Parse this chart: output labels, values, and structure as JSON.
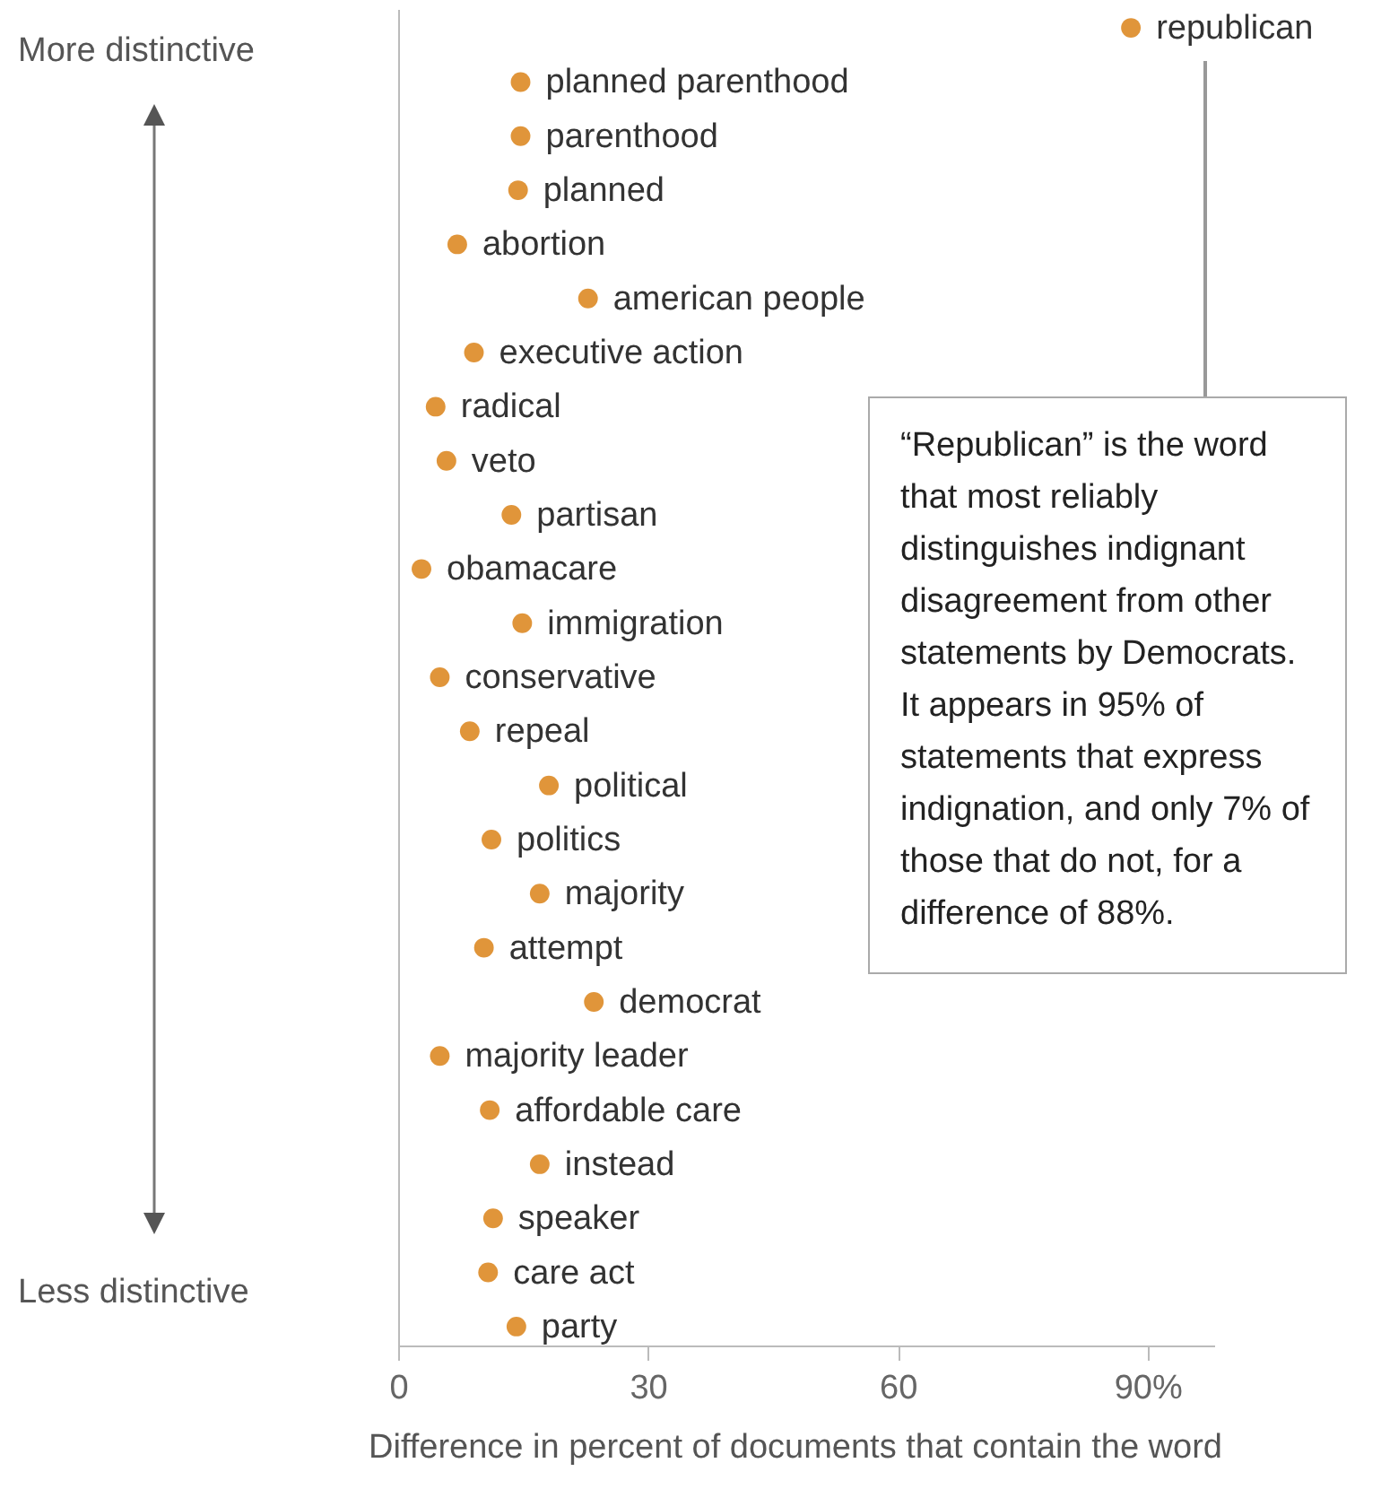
{
  "chart_data": {
    "type": "scatter",
    "orientation": "horizontal",
    "categories": [
      "republican",
      "planned parenthood",
      "parenthood",
      "planned",
      "abortion",
      "american people",
      "executive action",
      "radical",
      "veto",
      "partisan",
      "obamacare",
      "immigration",
      "conservative",
      "repeal",
      "political",
      "politics",
      "majority",
      "attempt",
      "democrat",
      "majority leader",
      "affordable care",
      "instead",
      "speaker",
      "care act",
      "party"
    ],
    "series": [
      {
        "color": "#e0953a",
        "values": [
          88,
          14.7,
          14.7,
          14.4,
          7.1,
          22.8,
          9.1,
          4.5,
          5.8,
          13.6,
          2.8,
          14.9,
          5,
          8.6,
          18.1,
          11.2,
          17,
          10.3,
          23.5,
          5,
          11,
          17,
          11.4,
          10.8,
          14.2
        ]
      }
    ],
    "xlabel": "Difference in percent of documents that contain the word",
    "xlim": [
      0,
      98
    ],
    "xticks": [
      0,
      30,
      60,
      {
        "value": 90,
        "label": "90%"
      }
    ],
    "tick_labels": "x",
    "grid": false,
    "legend": false,
    "marker": "circle",
    "annotations": [
      "More distinctive",
      "Less distinctive",
      "“Republican” is the word that most reliably distinguishes indignant disagreement from other statements by Democrats. It appears in 95% of statements that express indignation, and only 7% of those that do not, for a difference of 88%."
    ]
  }
}
